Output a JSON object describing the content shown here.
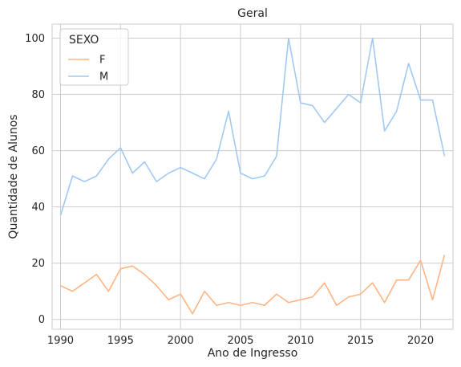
{
  "chart_data": {
    "type": "line",
    "title": "Geral",
    "xlabel": "Ano de Ingresso",
    "ylabel": "Quantidade de Alunos",
    "xlim": [
      1989.3,
      2022.7
    ],
    "ylim": [
      -3.5,
      105
    ],
    "xticks": [
      1990,
      1995,
      2000,
      2005,
      2010,
      2015,
      2020
    ],
    "yticks": [
      0,
      20,
      40,
      60,
      80,
      100
    ],
    "grid": true,
    "legend": {
      "title": "SEXO",
      "placement": "top-left"
    },
    "x": [
      1990,
      1991,
      1992,
      1993,
      1994,
      1995,
      1996,
      1997,
      1998,
      1999,
      2000,
      2001,
      2002,
      2003,
      2004,
      2005,
      2006,
      2007,
      2008,
      2009,
      2010,
      2011,
      2012,
      2013,
      2014,
      2015,
      2016,
      2017,
      2018,
      2019,
      2020,
      2021,
      2022
    ],
    "series": [
      {
        "name": "F",
        "color": "#ffb482",
        "values": [
          12,
          10,
          13,
          16,
          10,
          18,
          19,
          16,
          12,
          7,
          9,
          2,
          10,
          5,
          6,
          5,
          6,
          5,
          9,
          6,
          7,
          8,
          13,
          5,
          8,
          9,
          13,
          6,
          14,
          14,
          21,
          7,
          23
        ]
      },
      {
        "name": "M",
        "color": "#a1c9f4",
        "values": [
          37,
          51,
          49,
          51,
          57,
          61,
          52,
          56,
          49,
          52,
          54,
          52,
          50,
          57,
          74,
          52,
          50,
          51,
          58,
          100,
          77,
          76,
          70,
          75,
          80,
          77,
          100,
          67,
          74,
          91,
          78,
          78,
          58
        ]
      }
    ]
  }
}
